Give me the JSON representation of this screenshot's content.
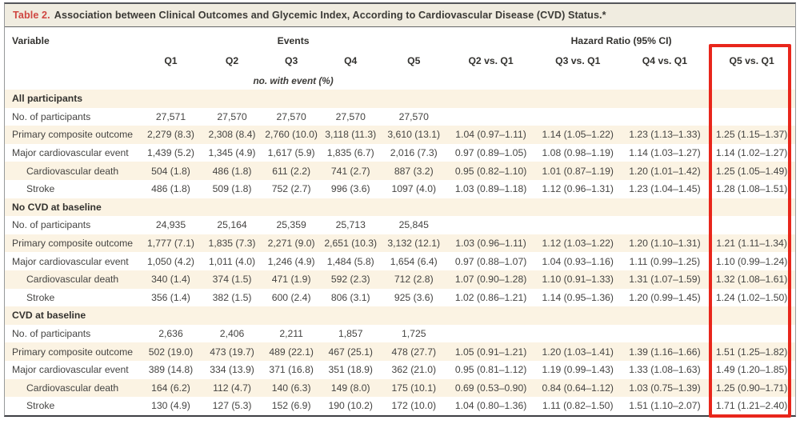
{
  "title": {
    "label": "Table 2.",
    "text": "Association between Clinical Outcomes and Glycemic Index, According to Cardiovascular Disease (CVD) Status.*"
  },
  "columns": {
    "variable": "Variable",
    "events_group": "Events",
    "hazard_group": "Hazard Ratio (95% CI)",
    "subheaders": [
      "Q1",
      "Q2",
      "Q3",
      "Q4",
      "Q5",
      "Q2 vs. Q1",
      "Q3 vs. Q1",
      "Q4 vs. Q1",
      "Q5 vs. Q1"
    ],
    "units_note": "no. with event (%)"
  },
  "highlight": {
    "column": "Q5 vs. Q1",
    "box_color": "#e8261b"
  },
  "colors": {
    "stripe": "#fbf3e3",
    "title_bar": "#f0ece0",
    "table_label_red": "#cf4641",
    "highlight_red": "#e8261b"
  },
  "sections": [
    {
      "header": "All participants",
      "rows": [
        {
          "label": "No. of participants",
          "indent": false,
          "cells": [
            "27,571",
            "27,570",
            "27,570",
            "27,570",
            "27,570",
            "",
            "",
            "",
            ""
          ]
        },
        {
          "label": "Primary composite outcome",
          "indent": false,
          "cells": [
            "2,279 (8.3)",
            "2,308 (8.4)",
            "2,760 (10.0)",
            "3,118 (11.3)",
            "3,610 (13.1)",
            "1.04 (0.97–1.11)",
            "1.14 (1.05–1.22)",
            "1.23 (1.13–1.33)",
            "1.25 (1.15–1.37)"
          ]
        },
        {
          "label": "Major cardiovascular event",
          "indent": false,
          "cells": [
            "1,439 (5.2)",
            "1,345 (4.9)",
            "1,617 (5.9)",
            "1,835 (6.7)",
            "2,016 (7.3)",
            "0.97 (0.89–1.05)",
            "1.08 (0.98–1.19)",
            "1.14 (1.03–1.27)",
            "1.14 (1.02–1.27)"
          ]
        },
        {
          "label": "Cardiovascular death",
          "indent": true,
          "cells": [
            "504 (1.8)",
            "486 (1.8)",
            "611 (2.2)",
            "741 (2.7)",
            "887 (3.2)",
            "0.95 (0.82–1.10)",
            "1.01 (0.87–1.19)",
            "1.20 (1.01–1.42)",
            "1.25 (1.05–1.49)"
          ]
        },
        {
          "label": "Stroke",
          "indent": true,
          "cells": [
            "486 (1.8)",
            "509 (1.8)",
            "752 (2.7)",
            "996 (3.6)",
            "1097 (4.0)",
            "1.03 (0.89–1.18)",
            "1.12 (0.96–1.31)",
            "1.23 (1.04–1.45)",
            "1.28 (1.08–1.51)"
          ]
        }
      ]
    },
    {
      "header": "No CVD at baseline",
      "rows": [
        {
          "label": "No. of participants",
          "indent": false,
          "cells": [
            "24,935",
            "25,164",
            "25,359",
            "25,713",
            "25,845",
            "",
            "",
            "",
            ""
          ]
        },
        {
          "label": "Primary composite outcome",
          "indent": false,
          "cells": [
            "1,777 (7.1)",
            "1,835 (7.3)",
            "2,271 (9.0)",
            "2,651 (10.3)",
            "3,132 (12.1)",
            "1.03 (0.96–1.11)",
            "1.12 (1.03–1.22)",
            "1.20 (1.10–1.31)",
            "1.21 (1.11–1.34)"
          ]
        },
        {
          "label": "Major cardiovascular event",
          "indent": false,
          "cells": [
            "1,050 (4.2)",
            "1,011 (4.0)",
            "1,246 (4.9)",
            "1,484 (5.8)",
            "1,654 (6.4)",
            "0.97 (0.88–1.07)",
            "1.04 (0.93–1.16)",
            "1.11 (0.99–1.25)",
            "1.10 (0.99–1.24)"
          ]
        },
        {
          "label": "Cardiovascular death",
          "indent": true,
          "cells": [
            "340 (1.4)",
            "374 (1.5)",
            "471 (1.9)",
            "592 (2.3)",
            "712 (2.8)",
            "1.07 (0.90–1.28)",
            "1.10 (0.91–1.33)",
            "1.31 (1.07–1.59)",
            "1.32 (1.08–1.61)"
          ]
        },
        {
          "label": "Stroke",
          "indent": true,
          "cells": [
            "356 (1.4)",
            "382 (1.5)",
            "600 (2.4)",
            "806 (3.1)",
            "925 (3.6)",
            "1.02 (0.86–1.21)",
            "1.14 (0.95–1.36)",
            "1.20 (0.99–1.45)",
            "1.24 (1.02–1.50)"
          ]
        }
      ]
    },
    {
      "header": "CVD at baseline",
      "rows": [
        {
          "label": "No. of participants",
          "indent": false,
          "cells": [
            "2,636",
            "2,406",
            "2,211",
            "1,857",
            "1,725",
            "",
            "",
            "",
            ""
          ]
        },
        {
          "label": "Primary composite outcome",
          "indent": false,
          "cells": [
            "502 (19.0)",
            "473 (19.7)",
            "489 (22.1)",
            "467 (25.1)",
            "478 (27.7)",
            "1.05 (0.91–1.21)",
            "1.20 (1.03–1.41)",
            "1.39 (1.16–1.66)",
            "1.51 (1.25–1.82)"
          ]
        },
        {
          "label": "Major cardiovascular event",
          "indent": false,
          "cells": [
            "389 (14.8)",
            "334 (13.9)",
            "371 (16.8)",
            "351 (18.9)",
            "362 (21.0)",
            "0.95 (0.81–1.12)",
            "1.19 (0.99–1.43)",
            "1.33 (1.08–1.63)",
            "1.49 (1.20–1.85)"
          ]
        },
        {
          "label": "Cardiovascular death",
          "indent": true,
          "cells": [
            "164 (6.2)",
            "112 (4.7)",
            "140 (6.3)",
            "149 (8.0)",
            "175 (10.1)",
            "0.69 (0.53–0.90)",
            "0.84 (0.64–1.12)",
            "1.03 (0.75–1.39)",
            "1.25 (0.90–1.71)"
          ]
        },
        {
          "label": "Stroke",
          "indent": true,
          "cells": [
            "130 (4.9)",
            "127 (5.3)",
            "152 (6.9)",
            "190 (10.2)",
            "172 (10.0)",
            "1.04 (0.80–1.36)",
            "1.11 (0.82–1.50)",
            "1.51 (1.10–2.07)",
            "1.71 (1.21–2.40)"
          ]
        }
      ]
    }
  ]
}
